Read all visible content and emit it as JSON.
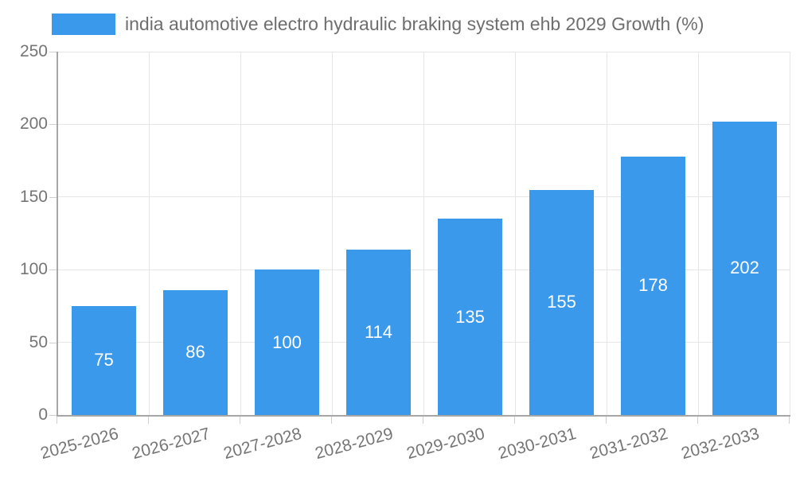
{
  "legend": {
    "label": "india automotive electro hydraulic braking system ehb 2029 Growth (%)"
  },
  "colors": {
    "bar": "#3B99EC",
    "grid": "#e6e6e6",
    "axis": "#a6a6a6",
    "tick": "#cfcfcf",
    "text": "#757575",
    "value_label": "#ffffff"
  },
  "chart_data": {
    "type": "bar",
    "title": "india automotive electro hydraulic braking system ehb 2029 Growth (%)",
    "categories": [
      "2025-2026",
      "2026-2027",
      "2027-2028",
      "2028-2029",
      "2029-2030",
      "2030-2031",
      "2031-2032",
      "2032-2033"
    ],
    "values": [
      75,
      86,
      100,
      114,
      135,
      155,
      178,
      202
    ],
    "xlabel": "",
    "ylabel": "",
    "ylim": [
      0,
      250
    ],
    "yticks": [
      0,
      50,
      100,
      150,
      200,
      250
    ],
    "grid": true,
    "legend_position": "top-left",
    "value_label_position": "inside-center",
    "value_label_color": "#ffffff"
  }
}
